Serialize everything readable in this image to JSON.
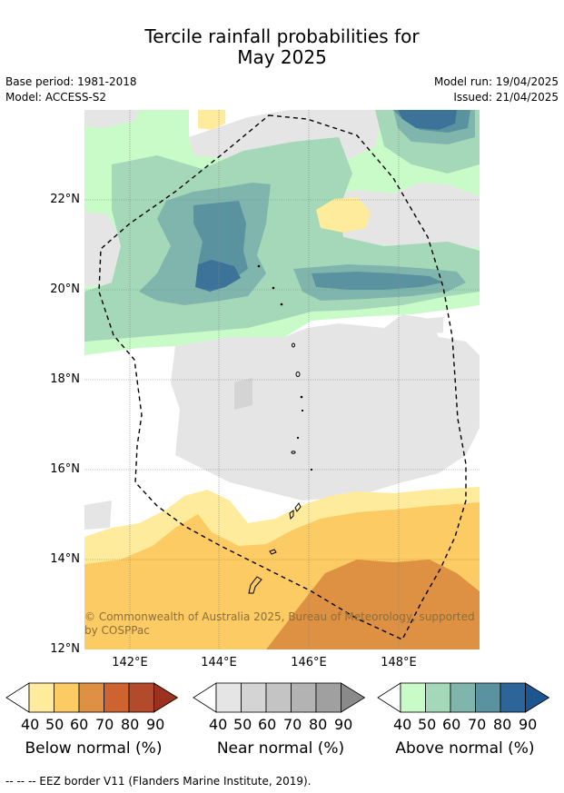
{
  "title_line1": "Tercile rainfall probabilities for",
  "title_line2": "May 2025",
  "meta": {
    "base_period": "Base period: 1981-2018",
    "model": "Model: ACCESS-S2",
    "model_run": "Model run: 19/04/2025",
    "issued": "Issued: 21/04/2025"
  },
  "map": {
    "lat_labels": [
      "22°N",
      "20°N",
      "18°N",
      "16°N",
      "14°N",
      "12°N"
    ],
    "lon_labels": [
      "142°E",
      "144°E",
      "146°E",
      "148°E"
    ],
    "copyright": "© Commonwealth of Australia 2025, Bureau of Meteorology, supported by COSPPac"
  },
  "colorbars": [
    {
      "title": "Below normal (%)",
      "ticks": [
        "40",
        "50",
        "60",
        "70",
        "80",
        "90"
      ],
      "colors": [
        "#ffffff",
        "#ffeb9c",
        "#fdcb63",
        "#df9143",
        "#ce6332",
        "#b24a2b",
        "#9b321f"
      ]
    },
    {
      "title": "Near normal (%)",
      "ticks": [
        "40",
        "50",
        "60",
        "70",
        "80",
        "90"
      ],
      "colors": [
        "#ffffff",
        "#e5e5e5",
        "#d4d4d4",
        "#c4c4c4",
        "#b3b3b3",
        "#a0a0a0",
        "#8a8a8a"
      ]
    },
    {
      "title": "Above normal (%)",
      "ticks": [
        "40",
        "50",
        "60",
        "70",
        "80",
        "90"
      ],
      "colors": [
        "#ffffff",
        "#c8fbc8",
        "#a4d8b8",
        "#80b5ad",
        "#5b929f",
        "#2e6598",
        "#1d5590"
      ]
    }
  ],
  "footer": "-- -- -- EEZ border V11 (Flanders Marine Institute, 2019)."
}
